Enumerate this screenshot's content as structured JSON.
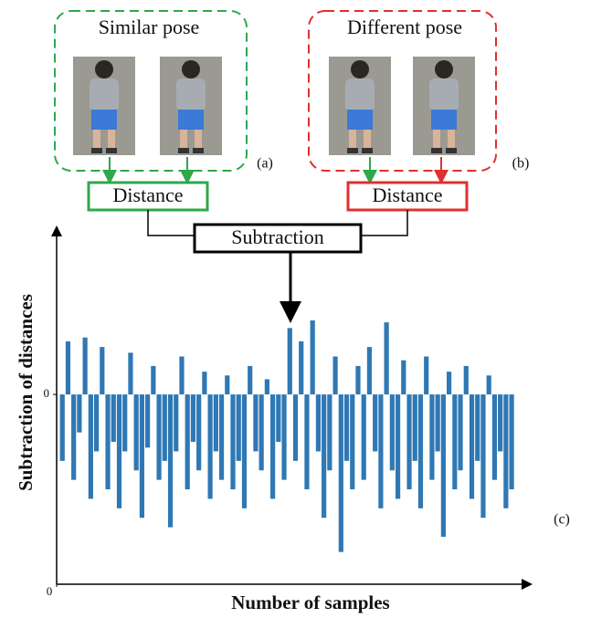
{
  "diagram": {
    "similar_title": "Similar pose",
    "different_title": "Different pose",
    "label_a": "(a)",
    "label_b": "(b)",
    "distance_left": "Distance",
    "distance_right": "Distance",
    "subtraction": "Subtraction",
    "label_c": "(c)"
  },
  "chart_data": {
    "type": "bar",
    "y_label": "Subtraction of distances",
    "x_label": "Number of samples",
    "color": "#2f78b4",
    "xlim": [
      0,
      84
    ],
    "xticks": [
      0
    ],
    "ylim": [
      -1,
      0.9
    ],
    "yticks": [
      0
    ],
    "x": [
      1,
      2,
      3,
      4,
      5,
      6,
      7,
      8,
      9,
      10,
      11,
      12,
      13,
      14,
      15,
      16,
      17,
      18,
      19,
      20,
      21,
      22,
      23,
      24,
      25,
      26,
      27,
      28,
      29,
      30,
      31,
      32,
      33,
      34,
      35,
      36,
      37,
      38,
      39,
      40,
      41,
      42,
      43,
      44,
      45,
      46,
      47,
      48,
      49,
      50,
      51,
      52,
      53,
      54,
      55,
      56,
      57,
      58,
      59,
      60,
      61,
      62,
      63,
      64,
      65,
      66,
      67,
      68,
      69,
      70,
      71,
      72,
      73,
      74,
      75,
      76,
      77,
      78,
      79,
      80
    ],
    "values": [
      -0.35,
      0.28,
      -0.45,
      -0.2,
      0.3,
      -0.55,
      -0.3,
      0.25,
      -0.5,
      -0.25,
      -0.6,
      -0.3,
      0.22,
      -0.4,
      -0.65,
      -0.28,
      0.15,
      -0.45,
      -0.35,
      -0.7,
      -0.3,
      0.2,
      -0.5,
      -0.25,
      -0.4,
      0.12,
      -0.55,
      -0.3,
      -0.45,
      0.1,
      -0.5,
      -0.35,
      -0.6,
      0.15,
      -0.3,
      -0.4,
      0.08,
      -0.55,
      -0.25,
      -0.45,
      0.35,
      -0.35,
      0.28,
      -0.5,
      0.39,
      -0.3,
      -0.65,
      -0.4,
      0.2,
      -0.83,
      -0.35,
      -0.5,
      0.15,
      -0.45,
      0.25,
      -0.3,
      -0.6,
      0.38,
      -0.4,
      -0.55,
      0.18,
      -0.5,
      -0.35,
      -0.6,
      0.2,
      -0.45,
      -0.3,
      -0.75,
      0.12,
      -0.5,
      -0.4,
      0.15,
      -0.55,
      -0.35,
      -0.65,
      0.1,
      -0.45,
      -0.3,
      -0.6,
      -0.5
    ]
  }
}
